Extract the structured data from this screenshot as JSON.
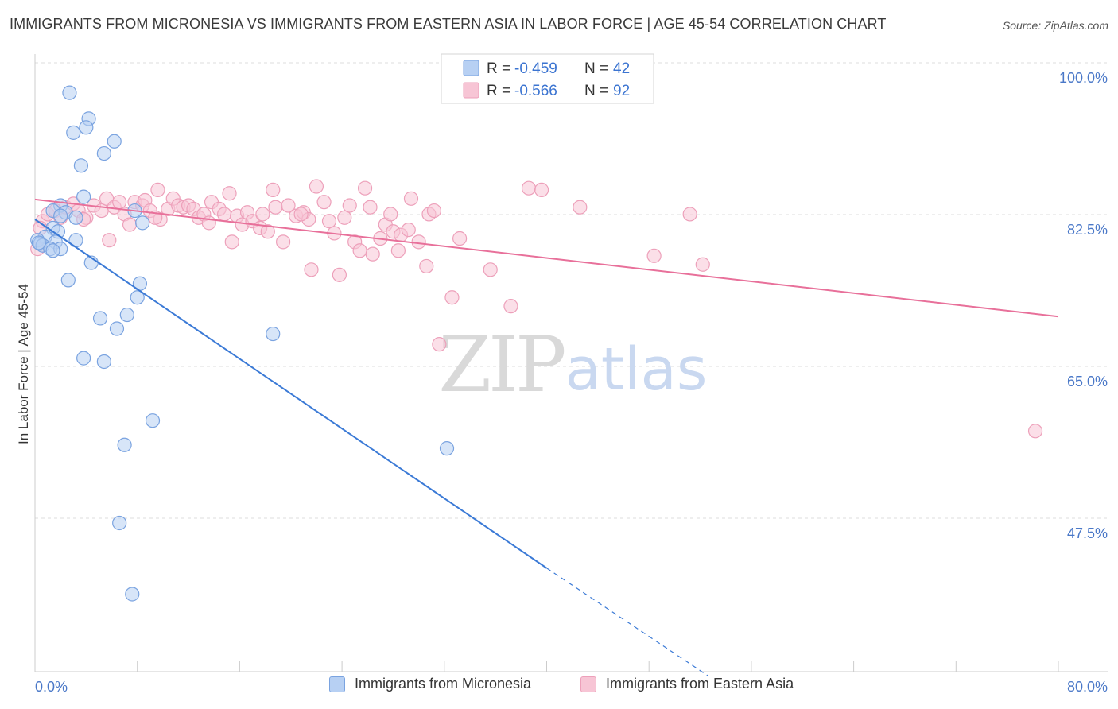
{
  "title": "IMMIGRANTS FROM MICRONESIA VS IMMIGRANTS FROM EASTERN ASIA IN LABOR FORCE | AGE 45-54 CORRELATION CHART",
  "source": "Source: ZipAtlas.com",
  "watermark": {
    "zip": "ZIP",
    "atlas": "atlas"
  },
  "colors": {
    "blue_fill": "#b7d0f3",
    "blue_stroke": "#7aa3e0",
    "blue_line": "#3b7ad6",
    "pink_fill": "#f7c5d5",
    "pink_stroke": "#eda0ba",
    "pink_line": "#e8709a",
    "tick_text": "#4a78c8",
    "grid": "#dddddd"
  },
  "legend_stats": [
    {
      "r_label": "R = ",
      "r_value": "-0.459",
      "n_label": "N = ",
      "n_value": "42"
    },
    {
      "r_label": "R = ",
      "r_value": "-0.566",
      "n_label": "N = ",
      "n_value": "92"
    }
  ],
  "chart_data": {
    "type": "scatter",
    "title": "IMMIGRANTS FROM MICRONESIA VS IMMIGRANTS FROM EASTERN ASIA IN LABOR FORCE | AGE 45-54 CORRELATION CHART",
    "xlabel": "",
    "ylabel": "In Labor Force | Age 45-54",
    "xlim": [
      0,
      80
    ],
    "ylim": [
      29.5,
      102
    ],
    "x_tick_labels": [
      "0.0%",
      "80.0%"
    ],
    "y_ticks": [
      47.5,
      65.0,
      82.5,
      100.0
    ],
    "y_tick_labels": [
      "47.5%",
      "65.0%",
      "82.5%",
      "100.0%"
    ],
    "grid": true,
    "legend_placement": "bottom",
    "series": [
      {
        "name": "Immigrants from Micronesia",
        "color": "#7aa3e0",
        "points": [
          [
            2.7,
            98.2
          ],
          [
            4.2,
            95.2
          ],
          [
            3.0,
            93.6
          ],
          [
            4.0,
            94.2
          ],
          [
            6.2,
            92.6
          ],
          [
            5.4,
            91.2
          ],
          [
            3.6,
            89.8
          ],
          [
            3.8,
            86.2
          ],
          [
            2.0,
            85.2
          ],
          [
            1.4,
            84.6
          ],
          [
            2.4,
            84.4
          ],
          [
            2.0,
            84.0
          ],
          [
            3.2,
            83.8
          ],
          [
            7.8,
            84.6
          ],
          [
            8.4,
            83.2
          ],
          [
            1.4,
            82.6
          ],
          [
            1.8,
            82.2
          ],
          [
            0.8,
            81.6
          ],
          [
            1.6,
            81.0
          ],
          [
            0.2,
            81.2
          ],
          [
            0.4,
            80.8
          ],
          [
            0.6,
            80.6
          ],
          [
            1.2,
            80.2
          ],
          [
            2.0,
            80.2
          ],
          [
            3.2,
            81.2
          ],
          [
            1.4,
            80.0
          ],
          [
            4.4,
            78.6
          ],
          [
            2.6,
            76.6
          ],
          [
            8.2,
            76.2
          ],
          [
            8.0,
            74.6
          ],
          [
            5.1,
            72.2
          ],
          [
            7.2,
            72.6
          ],
          [
            6.4,
            71.0
          ],
          [
            18.6,
            70.4
          ],
          [
            3.8,
            67.6
          ],
          [
            5.4,
            67.2
          ],
          [
            9.2,
            60.4
          ],
          [
            7.0,
            57.6
          ],
          [
            32.2,
            57.2
          ],
          [
            6.6,
            48.6
          ],
          [
            7.6,
            40.4
          ],
          [
            0.3,
            80.9
          ]
        ],
        "trend": {
          "x0": 0,
          "y0": 83.6,
          "x1": 40.0,
          "y1": 43.4,
          "dash_to_x": 52.6,
          "dash_to_y": 31.0
        }
      },
      {
        "name": "Immigrants from Eastern Asia",
        "color": "#eda0ba",
        "points": [
          [
            0.2,
            80.2
          ],
          [
            0.6,
            83.4
          ],
          [
            1.0,
            84.2
          ],
          [
            1.6,
            84.6
          ],
          [
            2.0,
            83.8
          ],
          [
            2.4,
            85.0
          ],
          [
            3.0,
            85.4
          ],
          [
            3.4,
            84.6
          ],
          [
            4.0,
            83.8
          ],
          [
            4.6,
            85.2
          ],
          [
            5.2,
            84.6
          ],
          [
            5.6,
            86.0
          ],
          [
            6.2,
            85.0
          ],
          [
            6.6,
            85.6
          ],
          [
            7.0,
            84.2
          ],
          [
            7.4,
            83.0
          ],
          [
            7.8,
            85.6
          ],
          [
            8.4,
            85.2
          ],
          [
            8.6,
            85.8
          ],
          [
            9.0,
            84.6
          ],
          [
            9.6,
            87.0
          ],
          [
            9.8,
            83.6
          ],
          [
            10.4,
            84.8
          ],
          [
            10.8,
            86.0
          ],
          [
            11.2,
            85.2
          ],
          [
            11.6,
            85.0
          ],
          [
            12.0,
            85.2
          ],
          [
            12.4,
            84.8
          ],
          [
            12.8,
            83.8
          ],
          [
            13.2,
            84.2
          ],
          [
            13.6,
            83.2
          ],
          [
            13.8,
            85.6
          ],
          [
            14.4,
            84.8
          ],
          [
            14.8,
            84.2
          ],
          [
            15.2,
            86.6
          ],
          [
            15.4,
            81.0
          ],
          [
            15.8,
            84.0
          ],
          [
            16.2,
            83.0
          ],
          [
            16.6,
            84.4
          ],
          [
            17.0,
            83.4
          ],
          [
            17.6,
            82.6
          ],
          [
            17.8,
            84.2
          ],
          [
            18.2,
            82.2
          ],
          [
            18.6,
            87.0
          ],
          [
            18.8,
            85.0
          ],
          [
            19.4,
            81.0
          ],
          [
            19.8,
            85.2
          ],
          [
            20.4,
            84.0
          ],
          [
            21.0,
            84.4
          ],
          [
            21.4,
            83.6
          ],
          [
            21.6,
            77.8
          ],
          [
            22.0,
            87.4
          ],
          [
            22.6,
            85.6
          ],
          [
            23.0,
            83.4
          ],
          [
            23.4,
            82.0
          ],
          [
            23.8,
            77.2
          ],
          [
            24.2,
            83.8
          ],
          [
            24.6,
            85.2
          ],
          [
            25.0,
            81.0
          ],
          [
            25.4,
            80.0
          ],
          [
            25.8,
            87.2
          ],
          [
            26.2,
            85.0
          ],
          [
            26.4,
            79.6
          ],
          [
            27.0,
            81.4
          ],
          [
            27.4,
            83.0
          ],
          [
            27.8,
            84.2
          ],
          [
            28.0,
            82.2
          ],
          [
            28.4,
            80.0
          ],
          [
            28.6,
            81.8
          ],
          [
            29.2,
            82.4
          ],
          [
            29.4,
            86.0
          ],
          [
            30.0,
            81.0
          ],
          [
            30.6,
            78.2
          ],
          [
            30.8,
            84.2
          ],
          [
            31.2,
            84.6
          ],
          [
            31.6,
            69.2
          ],
          [
            32.6,
            74.6
          ],
          [
            33.2,
            81.4
          ],
          [
            35.6,
            77.8
          ],
          [
            37.2,
            73.6
          ],
          [
            38.6,
            87.2
          ],
          [
            39.6,
            87.0
          ],
          [
            42.6,
            85.0
          ],
          [
            48.4,
            79.4
          ],
          [
            51.2,
            84.2
          ],
          [
            52.2,
            78.4
          ],
          [
            78.2,
            59.2
          ],
          [
            0.4,
            82.6
          ],
          [
            3.8,
            83.6
          ],
          [
            5.8,
            81.2
          ],
          [
            20.8,
            84.2
          ],
          [
            9.4,
            83.8
          ]
        ],
        "trend": {
          "x0": 0,
          "y0": 85.9,
          "x1": 80.0,
          "y1": 72.4
        }
      }
    ]
  }
}
